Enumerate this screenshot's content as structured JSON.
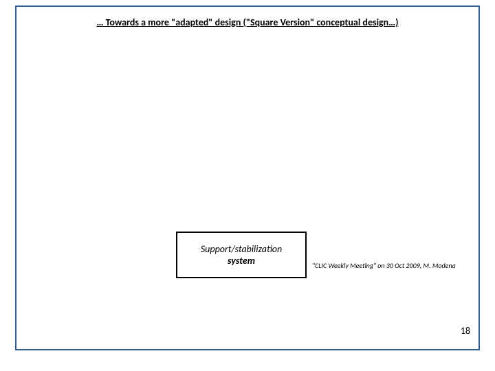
{
  "slide": {
    "title": "… Towards a  more \"adapted\" design (\"Square Version\" conceptual design…)",
    "border_color": "#2e5b8f",
    "background_color": "#ffffff"
  },
  "box": {
    "line1": "Support/stabilization",
    "line2": "system",
    "border_color": "#000000",
    "font_style": "italic"
  },
  "citation": {
    "text": "\"CLIC Weekly Meeting\" on 30 Oct 2009, M. Modena"
  },
  "page_number": "18"
}
